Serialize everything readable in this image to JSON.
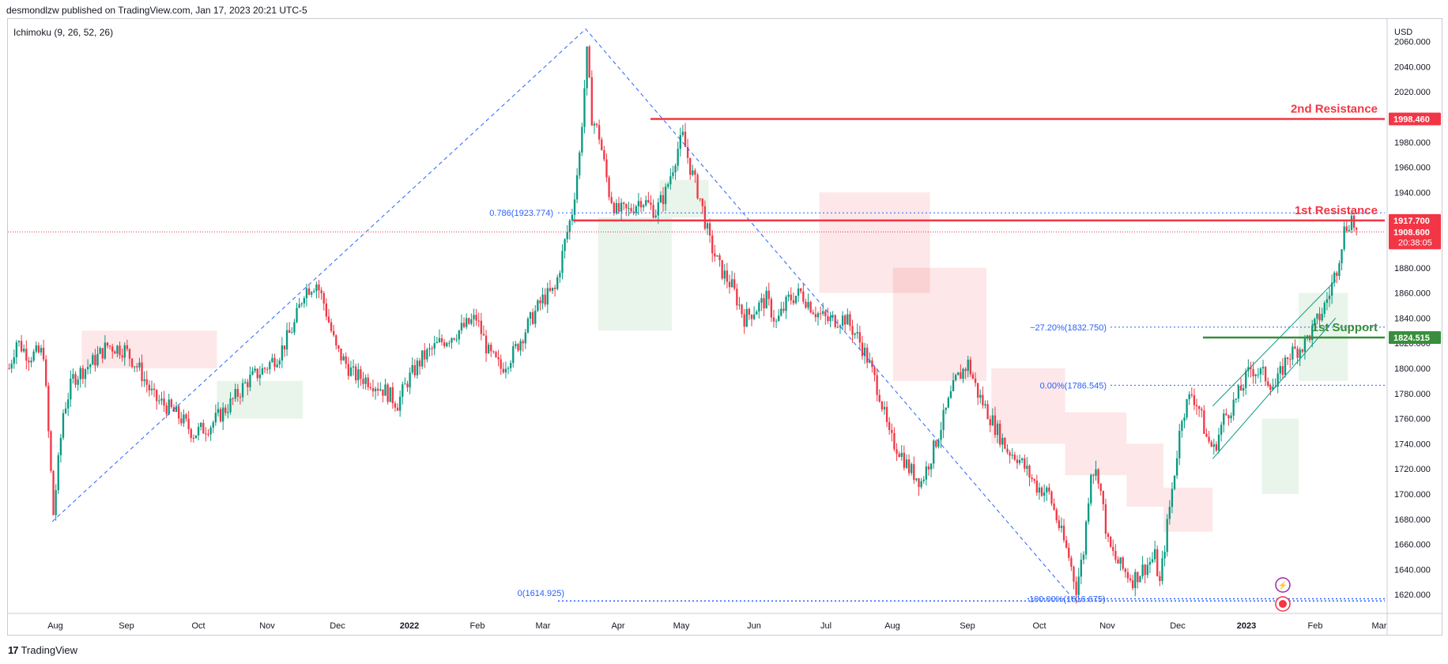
{
  "header": {
    "publisher": "desmondlzw published on TradingView.com, Jan 17, 2023 20:21 UTC-5"
  },
  "indicator": {
    "label": "Ichimoku (9, 26, 52, 26)"
  },
  "footer": {
    "brand": "TradingView"
  },
  "colors": {
    "up": "#089981",
    "down": "#f23645",
    "resistance": "#f23645",
    "support": "#388e3c",
    "fib": "#2962ff",
    "cloud_bull": "#4caf50",
    "cloud_bear": "#f23645"
  },
  "levels": {
    "second_resistance": {
      "label": "2nd Resistance",
      "tag": "1998.460",
      "value": 1998.46
    },
    "first_resistance": {
      "label": "1st Resistance",
      "tag": "1917.700",
      "value": 1917.7
    },
    "first_support": {
      "label": "1st Support",
      "tag": "1824.515",
      "value": 1824.515
    },
    "last_price": {
      "tag": "1908.600",
      "countdown": "20:38:05",
      "value": 1908.6
    }
  },
  "fib_labels": {
    "f786": {
      "text": "0.786(1923.774)",
      "value": 1923.774
    },
    "f0": {
      "text": "0(1614.925)",
      "value": 1614.925
    },
    "fm272": {
      "text": "−27.20%(1832.750)",
      "value": 1832.75
    },
    "f000": {
      "text": "0.00%(1786.545)",
      "value": 1786.545
    },
    "f100": {
      "text": "100.00%(1616.675)",
      "value": 1616.675
    }
  },
  "chart_data": {
    "type": "candlestick",
    "instrument_currency": "USD",
    "y_axis": {
      "ticks": [
        "2060.000",
        "2040.000",
        "2020.000",
        "2000.000",
        "1980.000",
        "1960.000",
        "1940.000",
        "1920.000",
        "1900.000",
        "1880.000",
        "1860.000",
        "1840.000",
        "1820.000",
        "1800.000",
        "1780.000",
        "1760.000",
        "1740.000",
        "1720.000",
        "1700.000",
        "1680.000",
        "1660.000",
        "1640.000",
        "1620.000"
      ],
      "range": [
        1605,
        2078
      ]
    },
    "x_axis": {
      "labels": [
        "Aug",
        "Sep",
        "Oct",
        "Nov",
        "Dec",
        "2022",
        "Feb",
        "Mar",
        "Apr",
        "May",
        "Jun",
        "Jul",
        "Aug",
        "Sep",
        "Oct",
        "Nov",
        "Dec",
        "2023",
        "Feb",
        "Mar"
      ],
      "bold": [
        "2022",
        "2023"
      ]
    },
    "swing_points": [
      {
        "date": "Aug 2021",
        "price": 1678
      },
      {
        "date": "Mar 2022",
        "price": 2070
      },
      {
        "date": "Sep 2022",
        "price": 1615
      },
      {
        "date": "Nov 2022",
        "price": 1617
      },
      {
        "date": "Jan 2023",
        "price": 1917
      }
    ],
    "price_path": [
      [
        0,
        1800
      ],
      [
        3,
        1822
      ],
      [
        8,
        1810
      ],
      [
        14,
        1813
      ],
      [
        18,
        1684
      ],
      [
        22,
        1765
      ],
      [
        26,
        1792
      ],
      [
        34,
        1805
      ],
      [
        40,
        1818
      ],
      [
        47,
        1815
      ],
      [
        53,
        1799
      ],
      [
        59,
        1776
      ],
      [
        64,
        1770
      ],
      [
        70,
        1760
      ],
      [
        75,
        1748
      ],
      [
        82,
        1755
      ],
      [
        90,
        1772
      ],
      [
        97,
        1790
      ],
      [
        104,
        1800
      ],
      [
        110,
        1812
      ],
      [
        116,
        1835
      ],
      [
        120,
        1862
      ],
      [
        125,
        1868
      ],
      [
        128,
        1852
      ],
      [
        133,
        1815
      ],
      [
        140,
        1795
      ],
      [
        147,
        1790
      ],
      [
        153,
        1782
      ],
      [
        158,
        1772
      ],
      [
        162,
        1790
      ],
      [
        168,
        1808
      ],
      [
        175,
        1820
      ],
      [
        183,
        1830
      ],
      [
        190,
        1840
      ],
      [
        195,
        1812
      ],
      [
        200,
        1800
      ],
      [
        205,
        1812
      ],
      [
        212,
        1838
      ],
      [
        217,
        1855
      ],
      [
        222,
        1862
      ],
      [
        226,
        1900
      ],
      [
        229,
        1925
      ],
      [
        232,
        1970
      ],
      [
        235,
        2050
      ],
      [
        237,
        2000
      ],
      [
        240,
        1985
      ],
      [
        244,
        1940
      ],
      [
        247,
        1925
      ],
      [
        252,
        1925
      ],
      [
        257,
        1935
      ],
      [
        263,
        1925
      ],
      [
        267,
        1940
      ],
      [
        272,
        1975
      ],
      [
        274,
        1984
      ],
      [
        277,
        1960
      ],
      [
        281,
        1935
      ],
      [
        285,
        1900
      ],
      [
        289,
        1880
      ],
      [
        294,
        1865
      ],
      [
        299,
        1840
      ],
      [
        304,
        1848
      ],
      [
        308,
        1855
      ],
      [
        312,
        1836
      ],
      [
        317,
        1855
      ],
      [
        322,
        1860
      ],
      [
        328,
        1845
      ],
      [
        333,
        1838
      ],
      [
        340,
        1840
      ],
      [
        345,
        1825
      ],
      [
        349,
        1808
      ],
      [
        354,
        1780
      ],
      [
        358,
        1745
      ],
      [
        362,
        1735
      ],
      [
        366,
        1720
      ],
      [
        371,
        1710
      ],
      [
        375,
        1730
      ],
      [
        380,
        1760
      ],
      [
        385,
        1790
      ],
      [
        390,
        1804
      ],
      [
        394,
        1780
      ],
      [
        398,
        1765
      ],
      [
        402,
        1750
      ],
      [
        406,
        1735
      ],
      [
        410,
        1730
      ],
      [
        414,
        1718
      ],
      [
        418,
        1706
      ],
      [
        423,
        1700
      ],
      [
        428,
        1668
      ],
      [
        431,
        1650
      ],
      [
        434,
        1625
      ],
      [
        437,
        1655
      ],
      [
        440,
        1720
      ],
      [
        443,
        1715
      ],
      [
        447,
        1660
      ],
      [
        450,
        1648
      ],
      [
        453,
        1640
      ],
      [
        457,
        1632
      ],
      [
        461,
        1640
      ],
      [
        466,
        1650
      ],
      [
        468,
        1628
      ],
      [
        471,
        1675
      ],
      [
        474,
        1718
      ],
      [
        477,
        1763
      ],
      [
        481,
        1780
      ],
      [
        484,
        1768
      ],
      [
        487,
        1745
      ],
      [
        490,
        1735
      ],
      [
        494,
        1760
      ],
      [
        499,
        1775
      ],
      [
        505,
        1800
      ],
      [
        510,
        1795
      ],
      [
        515,
        1785
      ],
      [
        520,
        1810
      ],
      [
        526,
        1818
      ],
      [
        530,
        1830
      ],
      [
        534,
        1845
      ],
      [
        537,
        1860
      ],
      [
        540,
        1880
      ],
      [
        543,
        1910
      ],
      [
        546,
        1920
      ],
      [
        548,
        1908
      ]
    ],
    "ichimoku_cloud": {
      "bear_segments": [
        [
          30,
          85,
          1800,
          1830
        ],
        [
          330,
          375,
          1860,
          1940
        ],
        [
          360,
          398,
          1790,
          1880
        ],
        [
          400,
          430,
          1740,
          1800
        ],
        [
          430,
          455,
          1715,
          1765
        ],
        [
          455,
          470,
          1690,
          1740
        ],
        [
          470,
          490,
          1670,
          1705
        ]
      ],
      "bull_segments": [
        [
          85,
          120,
          1760,
          1790
        ],
        [
          240,
          270,
          1830,
          1920
        ],
        [
          265,
          285,
          1920,
          1950
        ],
        [
          510,
          525,
          1700,
          1760
        ],
        [
          525,
          545,
          1790,
          1860
        ]
      ]
    }
  }
}
